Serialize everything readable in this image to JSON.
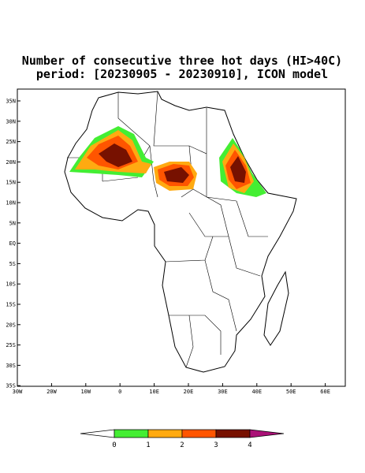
{
  "title": [
    "Number of consecutive three hot days (HI>40C)",
    "period: [20230905 - 20230910], ICON model"
  ],
  "lat_labels": [
    "35N",
    "30N",
    "25N",
    "20N",
    "15N",
    "10N",
    "5N",
    "EQ",
    "5S",
    "10S",
    "15S",
    "20S",
    "25S",
    "30S",
    "35S"
  ],
  "lon_labels": [
    "30W",
    "20W",
    "10W",
    "0",
    "10E",
    "20E",
    "30E",
    "40E",
    "50E",
    "60E"
  ],
  "colorbar": {
    "labels": [
      "0",
      "1",
      "2",
      "3",
      "4"
    ],
    "colors": [
      "#ffffff",
      "#44ee33",
      "#ffaa11",
      "#ff5500",
      "#771100",
      "#aa1177"
    ]
  }
}
